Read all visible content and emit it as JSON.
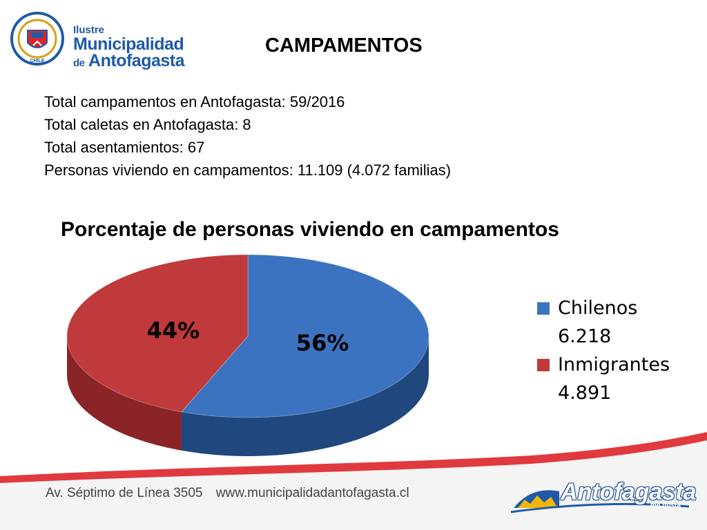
{
  "header": {
    "logo_line1": "Ilustre",
    "logo_line2": "Municipalidad",
    "logo_line3_small": "de",
    "logo_line3": "Antofagasta",
    "seal_text": "CHILE",
    "title": "CAMPAMENTOS"
  },
  "stats": [
    "Total campamentos en Antofagasta: 59/2016",
    "Total caletas en Antofagasta: 8",
    "Total asentamientos: 67",
    "Personas viviendo en campamentos: 11.109 (4.072 familias)"
  ],
  "chart_data": {
    "type": "pie",
    "title": "Porcentaje de personas viviendo en campamentos",
    "style": "3d",
    "legend_position": "right",
    "slices": [
      {
        "name": "Chilenos",
        "value": 6218,
        "value_label": "6.218",
        "percent_label": "56%",
        "color": "#3b73c0",
        "side_color": "#20477e"
      },
      {
        "name": "Inmigrantes",
        "value": 4891,
        "value_label": "4.891",
        "percent_label": "44%",
        "color": "#c0393b",
        "side_color": "#8a2426"
      }
    ]
  },
  "footer": {
    "address": "Av. Séptimo de Línea 3505",
    "website": "www.municipalidadantofagasta.cl",
    "brand_name": "Antofagasta",
    "brand_tagline": "me gusta",
    "band_color": "#d9262c"
  }
}
